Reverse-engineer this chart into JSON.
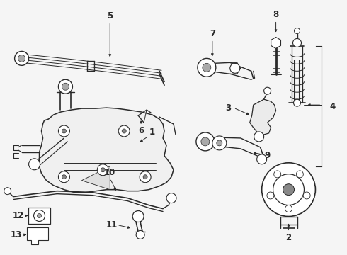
{
  "bg_color": "#f5f5f5",
  "line_color": "#2a2a2a",
  "figsize": [
    4.9,
    3.6
  ],
  "dpi": 100,
  "border_color": "#cccccc"
}
